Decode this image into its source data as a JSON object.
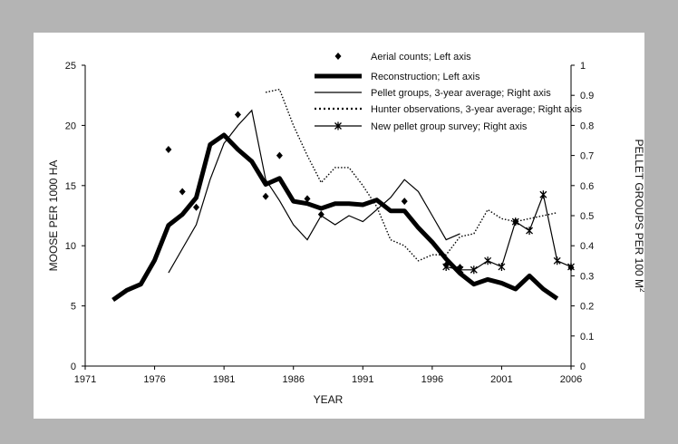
{
  "chart_data": {
    "type": "line",
    "xlabel": "YEAR",
    "ylabel": "MOOSE PER 1000 HA",
    "y2label": "PELLET GROUPS PER 100 M",
    "y2label_sup": "2",
    "xlim": [
      1971,
      2006
    ],
    "ylim": [
      0,
      25
    ],
    "y2lim": [
      0,
      1
    ],
    "x_ticks": [
      1971,
      1976,
      1981,
      1986,
      1991,
      1996,
      2001,
      2006
    ],
    "y_ticks": [
      0,
      5,
      10,
      15,
      20,
      25
    ],
    "y2_ticks": [
      "0",
      "0.1",
      "0.2",
      "0.3",
      "0.4",
      "0.5",
      "0.6",
      "0.7",
      "0.8",
      "0.9",
      "1"
    ],
    "legend_position": "top-right",
    "grid": false,
    "series": [
      {
        "name": "Aerial counts; Left axis",
        "kind": "points",
        "axis": "left",
        "points": [
          [
            1977,
            18
          ],
          [
            1978,
            14.5
          ],
          [
            1979,
            13.2
          ],
          [
            1982,
            20.9
          ],
          [
            1984,
            14.1
          ],
          [
            1985,
            17.5
          ],
          [
            1987,
            13.9
          ],
          [
            1988,
            12.6
          ],
          [
            1994,
            13.7
          ],
          [
            1997,
            8.4
          ],
          [
            1998,
            8.2
          ],
          [
            2002,
            12
          ],
          [
            2006,
            8.2
          ]
        ]
      },
      {
        "name": "Reconstruction; Left axis",
        "kind": "thick",
        "axis": "left",
        "points": [
          [
            1973,
            5.5
          ],
          [
            1974,
            6.3
          ],
          [
            1975,
            6.8
          ],
          [
            1976,
            8.8
          ],
          [
            1977,
            11.7
          ],
          [
            1978,
            12.6
          ],
          [
            1979,
            14
          ],
          [
            1980,
            18.4
          ],
          [
            1981,
            19.2
          ],
          [
            1982,
            18
          ],
          [
            1983,
            17
          ],
          [
            1984,
            15.1
          ],
          [
            1985,
            15.6
          ],
          [
            1986,
            13.7
          ],
          [
            1987,
            13.5
          ],
          [
            1988,
            13.1
          ],
          [
            1989,
            13.5
          ],
          [
            1990,
            13.5
          ],
          [
            1991,
            13.4
          ],
          [
            1992,
            13.8
          ],
          [
            1993,
            12.9
          ],
          [
            1994,
            12.9
          ],
          [
            1995,
            11.5
          ],
          [
            1996,
            10.3
          ],
          [
            1997,
            8.9
          ],
          [
            1998,
            7.7
          ],
          [
            1999,
            6.8
          ],
          [
            2000,
            7.2
          ],
          [
            2001,
            6.9
          ],
          [
            2002,
            6.4
          ],
          [
            2003,
            7.5
          ],
          [
            2004,
            6.4
          ],
          [
            2005,
            5.6
          ]
        ]
      },
      {
        "name": "Pellet groups, 3-year average; Right axis",
        "kind": "thin",
        "axis": "right",
        "points": [
          [
            1977,
            0.31
          ],
          [
            1978,
            0.39
          ],
          [
            1979,
            0.47
          ],
          [
            1980,
            0.62
          ],
          [
            1981,
            0.74
          ],
          [
            1982,
            0.8
          ],
          [
            1983,
            0.85
          ],
          [
            1984,
            0.62
          ],
          [
            1985,
            0.55
          ],
          [
            1986,
            0.47
          ],
          [
            1987,
            0.42
          ],
          [
            1988,
            0.5
          ],
          [
            1989,
            0.47
          ],
          [
            1990,
            0.5
          ],
          [
            1991,
            0.48
          ],
          [
            1992,
            0.52
          ],
          [
            1993,
            0.56
          ],
          [
            1994,
            0.62
          ],
          [
            1995,
            0.58
          ],
          [
            1996,
            0.5
          ],
          [
            1997,
            0.42
          ],
          [
            1998,
            0.44
          ]
        ]
      },
      {
        "name": "Hunter observations, 3-year average; Right axis",
        "kind": "dotted",
        "axis": "right",
        "points": [
          [
            1984,
            0.91
          ],
          [
            1985,
            0.92
          ],
          [
            1986,
            0.8
          ],
          [
            1987,
            0.7
          ],
          [
            1988,
            0.61
          ],
          [
            1989,
            0.66
          ],
          [
            1990,
            0.66
          ],
          [
            1991,
            0.6
          ],
          [
            1992,
            0.53
          ],
          [
            1993,
            0.42
          ],
          [
            1994,
            0.4
          ],
          [
            1995,
            0.35
          ],
          [
            1996,
            0.37
          ],
          [
            1997,
            0.37
          ],
          [
            1998,
            0.43
          ],
          [
            1999,
            0.44
          ],
          [
            2000,
            0.52
          ],
          [
            2001,
            0.49
          ],
          [
            2002,
            0.48
          ],
          [
            2003,
            0.49
          ],
          [
            2004,
            0.5
          ],
          [
            2005,
            0.51
          ]
        ]
      },
      {
        "name": "New pellet group survey; Right axis",
        "kind": "cross",
        "axis": "right",
        "points": [
          [
            1997,
            0.33
          ],
          [
            1998,
            0.32
          ],
          [
            1999,
            0.32
          ],
          [
            2000,
            0.35
          ],
          [
            2001,
            0.33
          ],
          [
            2002,
            0.48
          ],
          [
            2003,
            0.45
          ],
          [
            2004,
            0.57
          ],
          [
            2005,
            0.35
          ],
          [
            2006,
            0.33
          ]
        ]
      }
    ]
  }
}
